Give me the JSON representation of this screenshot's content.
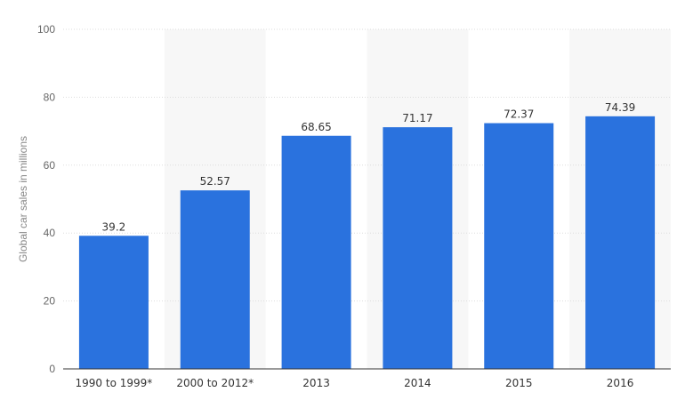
{
  "chart_data": {
    "type": "bar",
    "title": "",
    "xlabel": "",
    "ylabel": "Global car sales in millions",
    "categories": [
      "1990 to 1999*",
      "2000 to 2012*",
      "2013",
      "2014",
      "2015",
      "2016"
    ],
    "values": [
      39.2,
      52.57,
      68.65,
      71.17,
      72.37,
      74.39
    ],
    "value_labels": [
      "39.2",
      "52.57",
      "68.65",
      "71.17",
      "72.37",
      "74.39"
    ],
    "ylim": [
      0,
      100
    ],
    "yticks": [
      0,
      20,
      40,
      60,
      80,
      100
    ],
    "ytick_labels": [
      "0",
      "20",
      "40",
      "60",
      "80",
      "100"
    ],
    "grid": true,
    "legend": "none",
    "colors": {
      "bar": "#2a72de",
      "band": "#f7f7f7",
      "grid": "#dddddd"
    }
  }
}
